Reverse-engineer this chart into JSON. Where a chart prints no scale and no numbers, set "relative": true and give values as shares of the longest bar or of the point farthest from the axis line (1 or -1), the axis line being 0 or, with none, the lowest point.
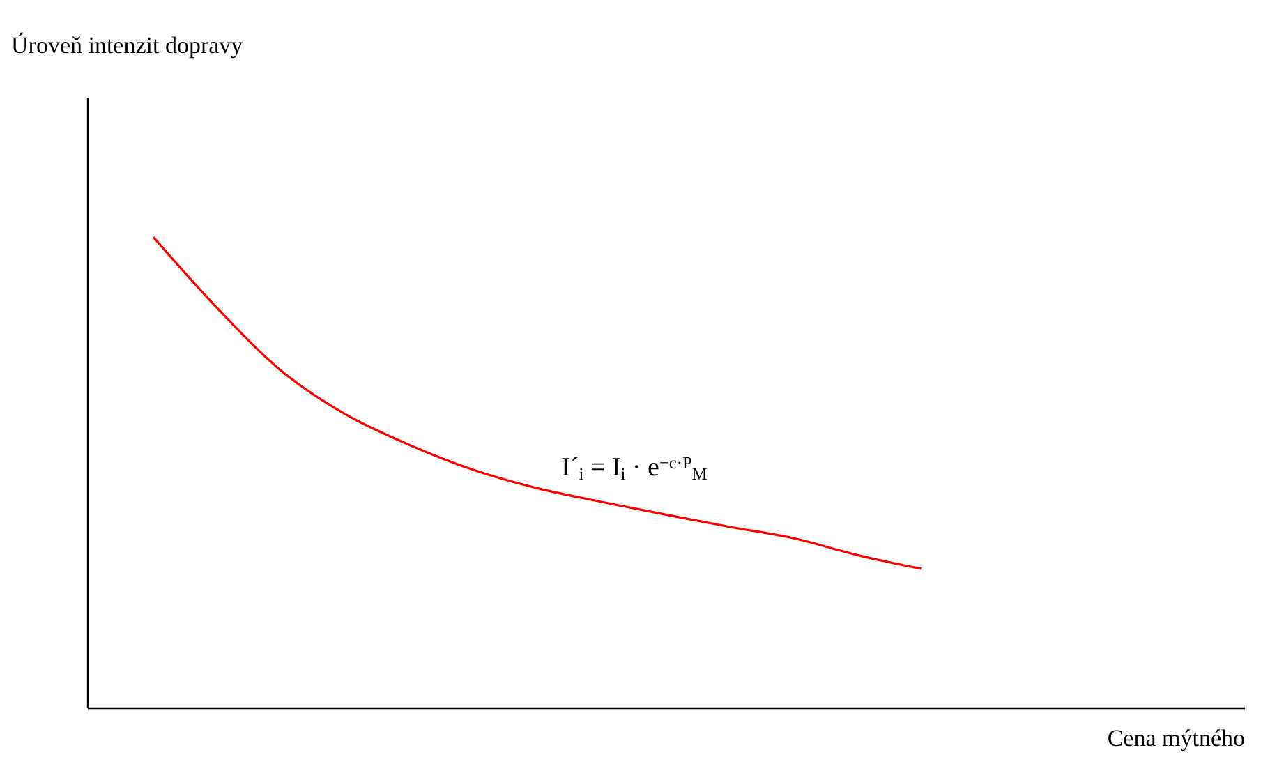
{
  "chart_data": {
    "type": "line",
    "relative": true,
    "categories": [
      null,
      null,
      null,
      null,
      null,
      null,
      null,
      null,
      null,
      null,
      null,
      null,
      null
    ],
    "series": [
      {
        "color": "#ff0000",
        "values": [
          1,
          0.849,
          0.716,
          0.624,
          0.559,
          0.506,
          0.467,
          0.438,
          0.411,
          0.385,
          0.361,
          0.325,
          0.296
        ]
      }
    ],
    "annotations": [
      "Úroveň intenzit dopravy",
      "I´$_{i}$ = I$_{i}$ · e$^{−c·P}$$_{M}$",
      "Cena mýtného"
    ],
    "marker": "none",
    "line_style": "solid"
  }
}
